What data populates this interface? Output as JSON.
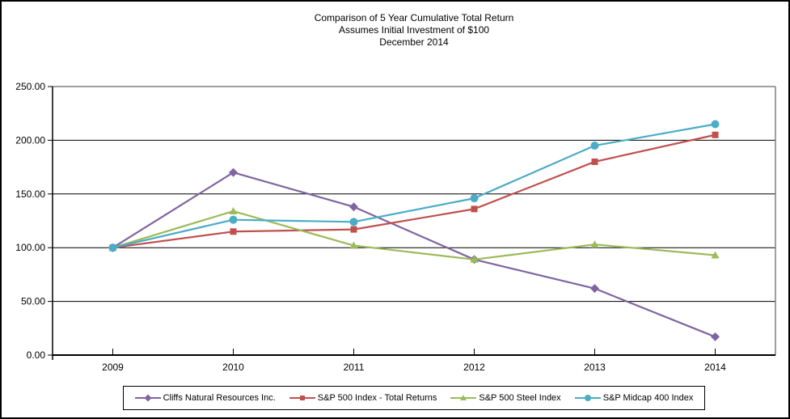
{
  "chart_data": {
    "type": "line",
    "title_lines": [
      "Comparison of 5 Year Cumulative Total Return",
      "Assumes Initial Investment of $100",
      "December 2014"
    ],
    "categories": [
      "2009",
      "2010",
      "2011",
      "2012",
      "2013",
      "2014"
    ],
    "series": [
      {
        "name": "Cliffs Natural Resources Inc.",
        "color": "#8064A2",
        "marker": "diamond",
        "values": [
          100,
          170,
          138,
          89,
          62,
          17
        ]
      },
      {
        "name": "S&P 500 Index - Total Returns",
        "color": "#C0504D",
        "marker": "square",
        "values": [
          100,
          115,
          117,
          136,
          180,
          205
        ]
      },
      {
        "name": "S&P 500 Steel Index",
        "color": "#9BBB59",
        "marker": "triangle",
        "values": [
          100,
          134,
          102,
          89,
          103,
          93
        ]
      },
      {
        "name": "S&P Midcap 400 Index",
        "color": "#4BACC6",
        "marker": "circle",
        "values": [
          100,
          126,
          124,
          146,
          195,
          215
        ]
      }
    ],
    "ylim": [
      0,
      250
    ],
    "ytick_step": 50,
    "ytick_labels": [
      "0.00",
      "50.00",
      "100.00",
      "150.00",
      "200.00",
      "250.00"
    ],
    "grid": true,
    "legend_position": "bottom",
    "colors": {
      "axis": "#000000",
      "gridline": "#000000",
      "plot_border": "#808080",
      "text": "#000000"
    }
  }
}
